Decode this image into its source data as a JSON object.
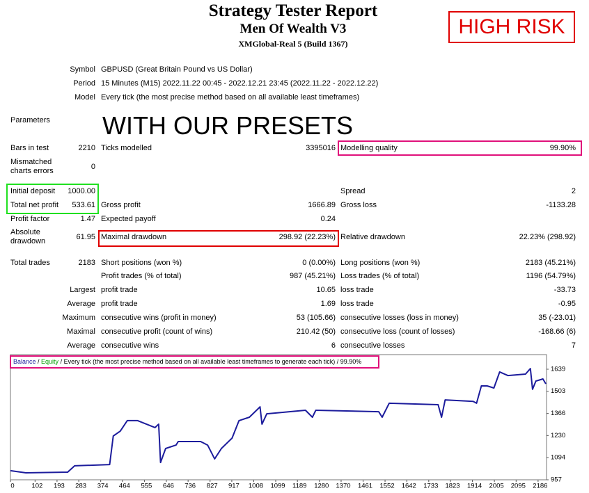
{
  "header": {
    "title": "Strategy Tester Report",
    "subtitle": "Men Of Wealth V3",
    "server": "XMGlobal-Real 5 (Build 1367)"
  },
  "badge": "HIGH RISK",
  "overlay": "WITH OUR PRESETS",
  "rows": [
    {
      "col1": {
        "label": "Symbol"
      },
      "col2": {
        "label": "GBPUSD (Great Britain Pound vs US Dollar)"
      }
    },
    {
      "col1": {
        "label": "Period"
      },
      "col2": {
        "label": "15 Minutes (M15) 2022.11.22 00:45 - 2022.12.21 23:45 (2022.11.22 - 2022.12.22)"
      }
    },
    {
      "col1": {
        "label": "Model"
      },
      "col2": {
        "label": "Every tick (the most precise method based on all available least timeframes)"
      }
    },
    {
      "col1": {
        "label": "Parameters"
      }
    },
    {
      "col1": {
        "label": "Bars in test",
        "value": "2210"
      },
      "col2": {
        "label": "Ticks modelled",
        "value": "3395016"
      },
      "col3": {
        "label": "Modelling quality",
        "value": "99.90%"
      }
    },
    {
      "col1": {
        "label": "Mismatched\ncharts errors",
        "value": "0"
      }
    },
    {
      "col1": {
        "label": "Initial deposit",
        "value": "1000.00"
      },
      "col3": {
        "label": "Spread",
        "value": "2"
      }
    },
    {
      "col1": {
        "label": "Total net profit",
        "value": "533.61"
      },
      "col2": {
        "label": "Gross profit",
        "value": "1666.89"
      },
      "col3": {
        "label": "Gross loss",
        "value": "-1133.28"
      }
    },
    {
      "col1": {
        "label": "Profit factor",
        "value": "1.47"
      },
      "col2": {
        "label": "Expected payoff",
        "value": "0.24"
      }
    },
    {
      "col1": {
        "label": "Absolute\ndrawdown",
        "value": "61.95"
      },
      "col2": {
        "label": "Maximal drawdown",
        "value": "298.92 (22.23%)"
      },
      "col3": {
        "label": "Relative drawdown",
        "value": "22.23% (298.92)"
      }
    },
    {
      "col1": {
        "label": "Total trades",
        "value": "2183"
      },
      "col2": {
        "label": "Short positions (won %)",
        "value": "0 (0.00%)"
      },
      "col3": {
        "label": "Long positions (won %)",
        "value": "2183 (45.21%)"
      }
    },
    {
      "col2": {
        "label": "Profit trades (% of total)",
        "value": "987 (45.21%)"
      },
      "col3": {
        "label": "Loss trades (% of total)",
        "value": "1196 (54.79%)"
      }
    },
    {
      "col1": {
        "label": "Largest"
      },
      "col2": {
        "label": "profit trade",
        "value": "10.65"
      },
      "col3": {
        "label": "loss trade",
        "value": "-33.73"
      }
    },
    {
      "col1": {
        "label": "Average"
      },
      "col2": {
        "label": "profit trade",
        "value": "1.69"
      },
      "col3": {
        "label": "loss trade",
        "value": "-0.95"
      }
    },
    {
      "col1": {
        "label": "Maximum"
      },
      "col2": {
        "label": "consecutive wins (profit in money)",
        "value": "53 (105.66)"
      },
      "col3": {
        "label": "consecutive losses (loss in money)",
        "value": "35 (-23.01)"
      }
    },
    {
      "col1": {
        "label": "Maximal"
      },
      "col2": {
        "label": "consecutive profit (count of wins)",
        "value": "210.42 (50)"
      },
      "col3": {
        "label": "consecutive loss (count of losses)",
        "value": "-168.66 (6)"
      }
    },
    {
      "col1": {
        "label": "Average"
      },
      "col2": {
        "label": "consecutive wins",
        "value": "6"
      },
      "col3": {
        "label": "consecutive losses",
        "value": "7"
      }
    }
  ],
  "chart_data": {
    "type": "line",
    "legend_note": "Every tick (the most precise method based on all available least timeframes to generate each tick)",
    "quality": "99.90%",
    "series": [
      {
        "name": "Balance",
        "color": "#1c1c9c",
        "x": [
          0,
          64,
          237,
          266,
          411,
          426,
          455,
          484,
          527,
          599,
          614,
          622,
          643,
          686,
          695,
          788,
          817,
          846,
          874,
          918,
          947,
          990,
          1034,
          1042,
          1062,
          1222,
          1251,
          1265,
          1526,
          1540,
          1569,
          1772,
          1786,
          1801,
          1917,
          1931,
          1951,
          1975,
          2003,
          2027,
          2061,
          2134,
          2154,
          2163,
          2177,
          2206,
          2218
        ],
        "values": [
          1013,
          1000,
          1004,
          1043,
          1051,
          1227,
          1257,
          1322,
          1322,
          1279,
          1300,
          1064,
          1150,
          1171,
          1193,
          1193,
          1171,
          1086,
          1150,
          1214,
          1322,
          1343,
          1407,
          1300,
          1364,
          1386,
          1343,
          1386,
          1377,
          1343,
          1429,
          1420,
          1343,
          1450,
          1441,
          1429,
          1536,
          1536,
          1523,
          1622,
          1600,
          1609,
          1643,
          1515,
          1566,
          1579,
          1549
        ]
      },
      {
        "name": "Equity",
        "color": "#00a000"
      }
    ],
    "xlim": [
      0,
      2221
    ],
    "ylim": [
      957,
      1729
    ],
    "xticks": [
      0,
      102,
      193,
      283,
      374,
      464,
      555,
      646,
      736,
      827,
      917,
      1008,
      1099,
      1189,
      1280,
      1370,
      1461,
      1552,
      1642,
      1733,
      1823,
      1914,
      2005,
      2095,
      2186
    ],
    "yticks": [
      957,
      1094,
      1230,
      1366,
      1503,
      1639
    ]
  }
}
